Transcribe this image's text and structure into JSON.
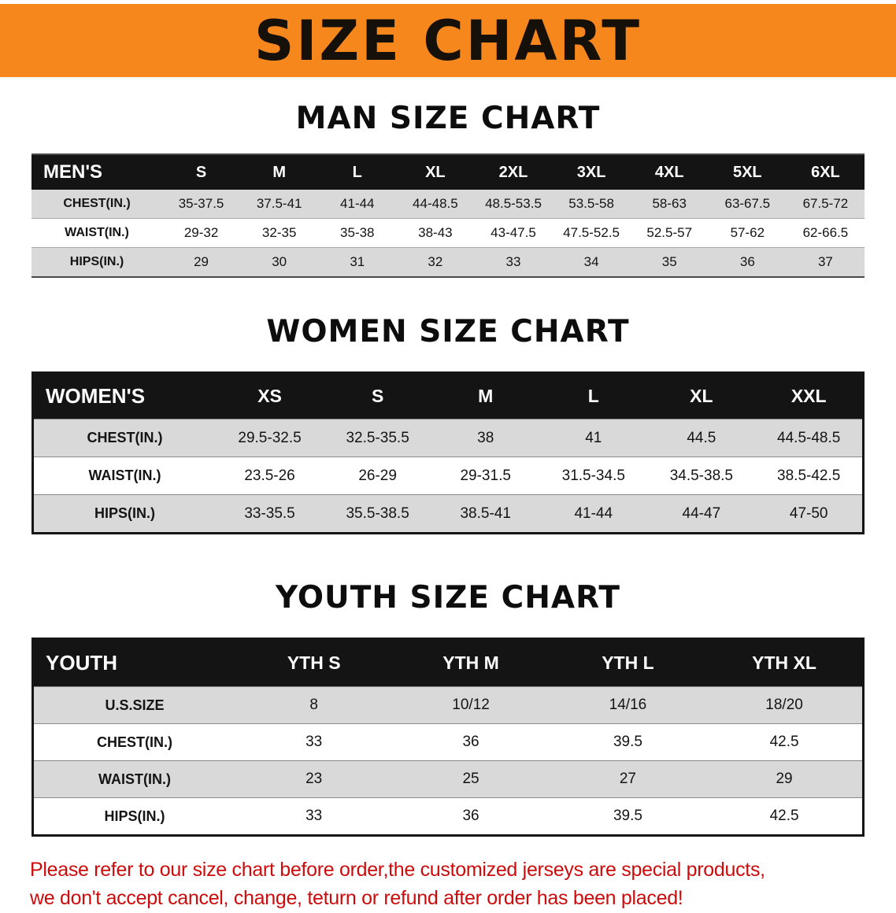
{
  "colors": {
    "banner-orange": "#F6871D",
    "table-header-bg": "#141414",
    "row-shade": "#D9D9D9",
    "disclaimer-red": "#CC0C0C"
  },
  "banner": {
    "title": "SIZE CHART"
  },
  "sections": [
    {
      "heading": "MAN SIZE CHART",
      "table": {
        "header": [
          "MEN'S",
          "S",
          "M",
          "L",
          "XL",
          "2XL",
          "3XL",
          "4XL",
          "5XL",
          "6XL"
        ],
        "rows": [
          [
            "CHEST(IN.)",
            "35-37.5",
            "37.5-41",
            "41-44",
            "44-48.5",
            "48.5-53.5",
            "53.5-58",
            "58-63",
            "63-67.5",
            "67.5-72"
          ],
          [
            "WAIST(IN.)",
            "29-32",
            "32-35",
            "35-38",
            "38-43",
            "43-47.5",
            "47.5-52.5",
            "52.5-57",
            "57-62",
            "62-66.5"
          ],
          [
            "HIPS(IN.)",
            "29",
            "30",
            "31",
            "32",
            "33",
            "34",
            "35",
            "36",
            "37"
          ]
        ]
      }
    },
    {
      "heading": "WOMEN SIZE CHART",
      "table": {
        "header": [
          "WOMEN'S",
          "XS",
          "S",
          "M",
          "L",
          "XL",
          "XXL"
        ],
        "rows": [
          [
            "CHEST(IN.)",
            "29.5-32.5",
            "32.5-35.5",
            "38",
            "41",
            "44.5",
            "44.5-48.5"
          ],
          [
            "WAIST(IN.)",
            "23.5-26",
            "26-29",
            "29-31.5",
            "31.5-34.5",
            "34.5-38.5",
            "38.5-42.5"
          ],
          [
            "HIPS(IN.)",
            "33-35.5",
            "35.5-38.5",
            "38.5-41",
            "41-44",
            "44-47",
            "47-50"
          ]
        ]
      }
    },
    {
      "heading": "YOUTH SIZE CHART",
      "table": {
        "header": [
          "YOUTH",
          "YTH S",
          "YTH M",
          "YTH L",
          "YTH XL"
        ],
        "rows": [
          [
            "U.S.SIZE",
            "8",
            "10/12",
            "14/16",
            "18/20"
          ],
          [
            "CHEST(IN.)",
            "33",
            "36",
            "39.5",
            "42.5"
          ],
          [
            "WAIST(IN.)",
            "23",
            "25",
            "27",
            "29"
          ],
          [
            "HIPS(IN.)",
            "33",
            "36",
            "39.5",
            "42.5"
          ]
        ]
      }
    }
  ],
  "disclaimer": {
    "lines": [
      "Please refer to our size chart before order,the customized jerseys are special products,",
      "we don't accept cancel, change, teturn or refund after order has been placed!"
    ]
  }
}
